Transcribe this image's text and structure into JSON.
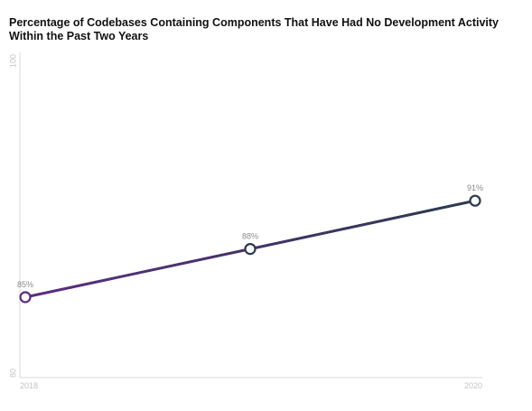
{
  "chart_data": {
    "type": "line",
    "title_lines": [
      "Percentage of Codebases Containing Components That Have Had No Development Activity",
      "Within the Past Two Years"
    ],
    "x": [
      2018,
      2019,
      2020
    ],
    "x_tick_labels": [
      "2018",
      "2020"
    ],
    "series": [
      {
        "values": [
          85,
          88,
          91
        ],
        "data_labels": [
          "85%",
          "88%",
          "91%"
        ]
      }
    ],
    "y_tick_labels": [
      "100",
      "80"
    ],
    "ylim": [
      80,
      100
    ],
    "xlim": [
      2018,
      2020
    ],
    "grid": false,
    "legend": "none",
    "colors": {
      "line_start": "#5b2d82",
      "line_end": "#2b3a4f",
      "marker_fill": "#ffffff",
      "axis": "#d9d9d9",
      "tick_text": "#c4c4c4",
      "label_text": "#8a8a8a"
    }
  }
}
